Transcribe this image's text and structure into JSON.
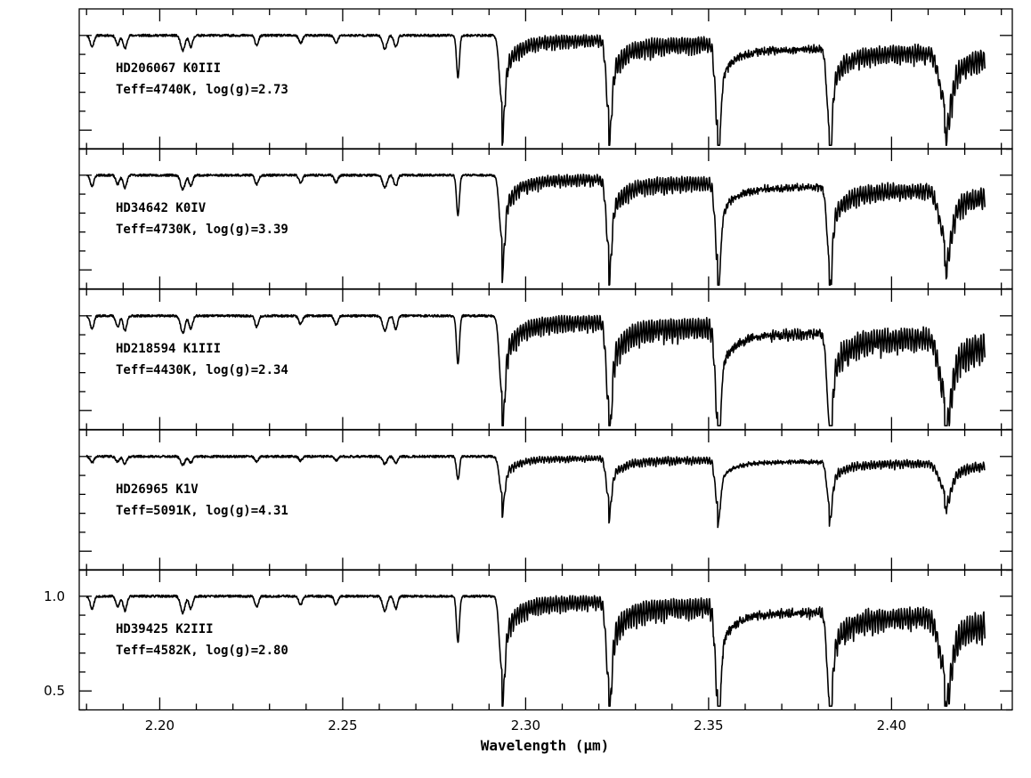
{
  "chart_data": {
    "type": "line",
    "layout": "stacked",
    "xlabel": "Wavelength (μm)",
    "xlim": [
      2.178,
      2.433
    ],
    "x_ticks": [
      "2.20",
      "2.25",
      "2.30",
      "2.35",
      "2.40"
    ],
    "ylim": [
      0.4,
      1.14
    ],
    "y_ticks": [
      "1.0",
      "0.5"
    ],
    "grid": false,
    "line_color": "#000000",
    "absorption_features_um": [
      {
        "x": 2.1815,
        "depth": 0.06,
        "width": 0.0005
      },
      {
        "x": 2.1885,
        "depth": 0.05,
        "width": 0.0005
      },
      {
        "x": 2.1905,
        "depth": 0.07,
        "width": 0.0005
      },
      {
        "x": 2.2063,
        "depth": 0.08,
        "width": 0.0006
      },
      {
        "x": 2.2085,
        "depth": 0.06,
        "width": 0.0005
      },
      {
        "x": 2.2265,
        "depth": 0.05,
        "width": 0.0005
      },
      {
        "x": 2.2385,
        "depth": 0.04,
        "width": 0.0005
      },
      {
        "x": 2.2482,
        "depth": 0.04,
        "width": 0.0005
      },
      {
        "x": 2.2615,
        "depth": 0.07,
        "width": 0.0006
      },
      {
        "x": 2.2645,
        "depth": 0.06,
        "width": 0.0005
      },
      {
        "x": 2.2815,
        "depth": 0.22,
        "width": 0.0004
      },
      {
        "x": 2.2935,
        "depth": 0.35,
        "width": 0.0007
      },
      {
        "x": 2.3227,
        "depth": 0.38,
        "width": 0.0007
      },
      {
        "x": 2.3525,
        "depth": 0.43,
        "width": 0.0007
      },
      {
        "x": 2.383,
        "depth": 0.4,
        "width": 0.0007
      },
      {
        "x": 2.4145,
        "depth": 0.25,
        "width": 0.0015
      }
    ],
    "bandheads_um": [
      2.2935,
      2.3227,
      2.3525,
      2.383,
      2.4145
    ],
    "series": [
      {
        "name": "HD206067 K0III",
        "params": "Teff=4740K, log(g)=2.73",
        "ripple": 0.1,
        "seed": 11,
        "scale": 1.0
      },
      {
        "name": "HD34642 K0IV",
        "params": "Teff=4730K, log(g)=3.39",
        "ripple": 0.09,
        "seed": 23,
        "scale": 0.95
      },
      {
        "name": "HD218594 K1III",
        "params": "Teff=4430K, log(g)=2.34",
        "ripple": 0.13,
        "seed": 37,
        "scale": 1.15
      },
      {
        "name": "HD26965 K1V",
        "params": "Teff=5091K, log(g)=4.31",
        "ripple": 0.04,
        "seed": 41,
        "scale": 0.55
      },
      {
        "name": "HD39425 K2III",
        "params": "Teff=4582K, log(g)=2.80",
        "ripple": 0.12,
        "seed": 53,
        "scale": 1.1
      }
    ]
  }
}
